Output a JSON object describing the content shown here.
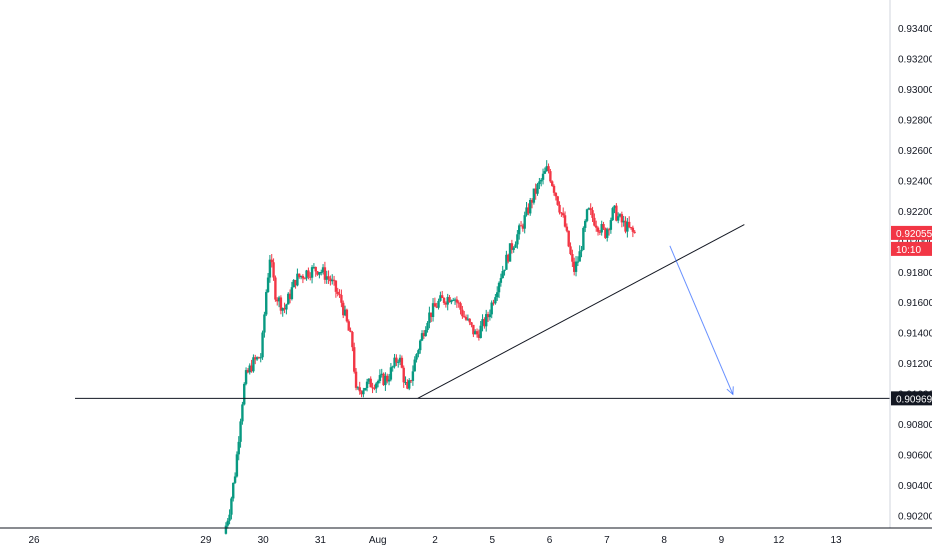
{
  "chart_data": {
    "type": "candlestick",
    "symbol": "",
    "y_axis": {
      "position": "right",
      "range": [
        0.9008,
        0.9358
      ],
      "ticks": [
        "0.93400",
        "0.93200",
        "0.93000",
        "0.92800",
        "0.92600",
        "0.92400",
        "0.92200",
        "0.92000",
        "0.91800",
        "0.91600",
        "0.91400",
        "0.91200",
        "0.91000",
        "0.90800",
        "0.90600",
        "0.90400",
        "0.90200"
      ],
      "tick_values": [
        0.934,
        0.932,
        0.93,
        0.928,
        0.926,
        0.924,
        0.922,
        0.92,
        0.918,
        0.916,
        0.914,
        0.912,
        0.91,
        0.908,
        0.906,
        0.904,
        0.902
      ]
    },
    "x_axis": {
      "range": [
        25.2,
        40.0
      ],
      "ticks": [
        {
          "label": "26",
          "value": 26
        },
        {
          "label": "29",
          "value": 29
        },
        {
          "label": "30",
          "value": 30
        },
        {
          "label": "31",
          "value": 31
        },
        {
          "label": "Aug",
          "value": 32
        },
        {
          "label": "2",
          "value": 33
        },
        {
          "label": "5",
          "value": 34
        },
        {
          "label": "6",
          "value": 35
        },
        {
          "label": "7",
          "value": 36
        },
        {
          "label": "8",
          "value": 37
        },
        {
          "label": "9",
          "value": 38
        },
        {
          "label": "12",
          "value": 39
        },
        {
          "label": "13",
          "value": 40
        }
      ]
    },
    "price_path": [
      [
        29.35,
        0.9008
      ],
      [
        29.45,
        0.9025
      ],
      [
        29.55,
        0.905
      ],
      [
        29.65,
        0.909
      ],
      [
        29.72,
        0.911
      ],
      [
        29.85,
        0.912
      ],
      [
        30.0,
        0.9125
      ],
      [
        30.08,
        0.9165
      ],
      [
        30.15,
        0.919
      ],
      [
        30.25,
        0.9165
      ],
      [
        30.4,
        0.9155
      ],
      [
        30.6,
        0.9175
      ],
      [
        30.8,
        0.918
      ],
      [
        31.0,
        0.9182
      ],
      [
        31.2,
        0.9175
      ],
      [
        31.4,
        0.916
      ],
      [
        31.6,
        0.913
      ],
      [
        31.65,
        0.91
      ],
      [
        31.8,
        0.9105
      ],
      [
        32.0,
        0.9108
      ],
      [
        32.2,
        0.911
      ],
      [
        32.4,
        0.9125
      ],
      [
        32.55,
        0.91
      ],
      [
        32.7,
        0.9125
      ],
      [
        32.9,
        0.915
      ],
      [
        33.1,
        0.916
      ],
      [
        33.35,
        0.9165
      ],
      [
        33.55,
        0.915
      ],
      [
        33.75,
        0.9138
      ],
      [
        33.95,
        0.915
      ],
      [
        34.15,
        0.9175
      ],
      [
        34.35,
        0.9195
      ],
      [
        34.55,
        0.921
      ],
      [
        34.75,
        0.923
      ],
      [
        35.0,
        0.9248
      ],
      [
        35.15,
        0.923
      ],
      [
        35.3,
        0.921
      ],
      [
        35.45,
        0.918
      ],
      [
        35.55,
        0.919
      ],
      [
        35.7,
        0.922
      ],
      [
        35.85,
        0.9212
      ],
      [
        36.0,
        0.9205
      ],
      [
        36.15,
        0.922
      ],
      [
        36.3,
        0.9212
      ],
      [
        36.5,
        0.9205
      ]
    ],
    "support_level": 0.90969,
    "trendline": {
      "from": [
        32.7,
        0.90969
      ],
      "to": [
        38.4,
        0.9211
      ]
    },
    "projection_arrow": {
      "from": [
        37.1,
        0.9197
      ],
      "to": [
        38.2,
        0.90969
      ]
    },
    "price_labels": [
      {
        "value": "0.92055",
        "price": 0.92055,
        "color": "#f23645"
      },
      {
        "value": "10:10",
        "price": 0.9195,
        "color": "#f23645"
      },
      {
        "value": "0.90969",
        "price": 0.90969,
        "color": "#131722"
      }
    ],
    "up_color": "#089981",
    "down_color": "#f23645",
    "grid": false
  }
}
